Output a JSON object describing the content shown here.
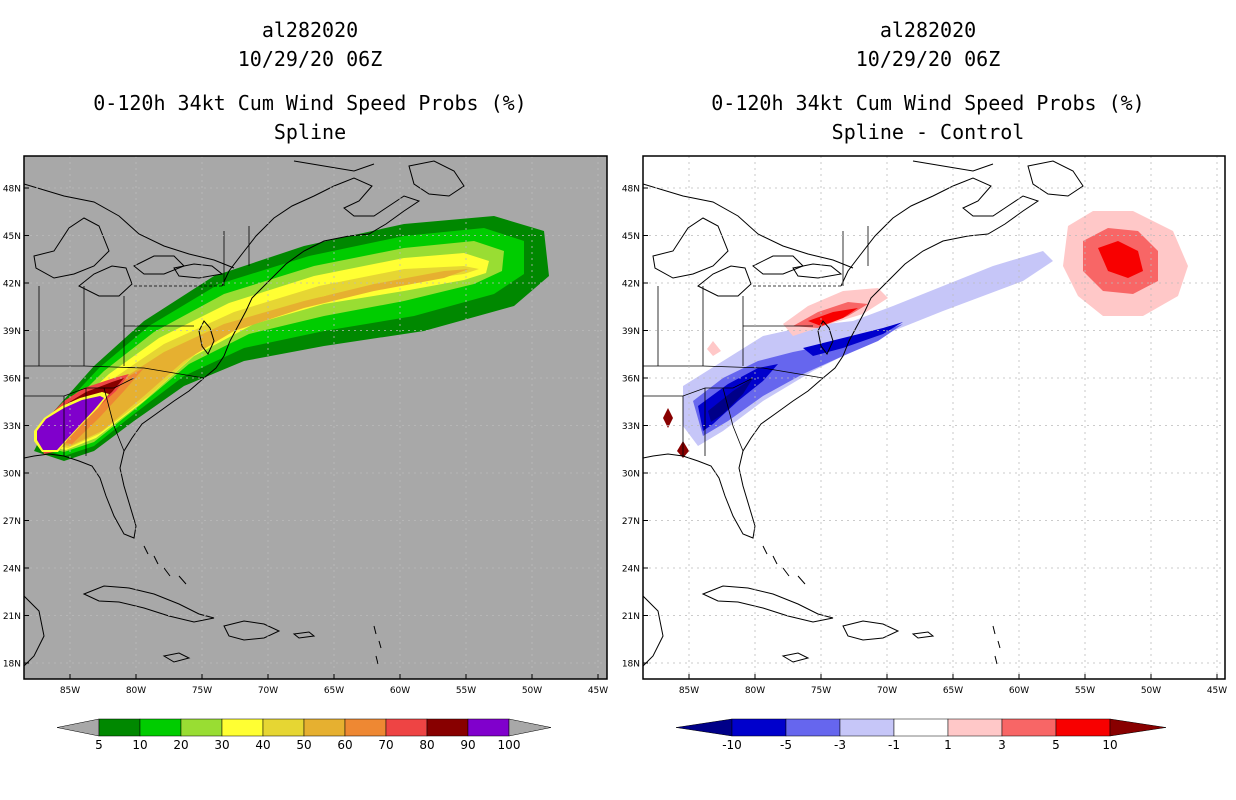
{
  "left_panel": {
    "storm_id": "al282020",
    "datetime": "10/29/20 06Z",
    "product": "0-120h 34kt Cum Wind Speed Probs (%)",
    "subtitle": "Spline",
    "colorbar": {
      "labels": [
        "5",
        "10",
        "20",
        "30",
        "40",
        "50",
        "60",
        "70",
        "80",
        "90",
        "100"
      ],
      "colors": [
        "#008800",
        "#00cc00",
        "#99dd33",
        "#ffff33",
        "#e6d633",
        "#e6b030",
        "#ee8833",
        "#ee4444",
        "#880000",
        "#8000cc"
      ],
      "end_color": "#a8a8a8"
    },
    "background_color": "#a8a8a8"
  },
  "right_panel": {
    "storm_id": "al282020",
    "datetime": "10/29/20 06Z",
    "product": "0-120h 34kt Cum Wind Speed Probs (%)",
    "subtitle": "Spline - Control",
    "colorbar": {
      "labels": [
        "-10",
        "-5",
        "-3",
        "-1",
        "1",
        "3",
        "5",
        "10"
      ],
      "colors": [
        "#0000cc",
        "#6666ee",
        "#c6c6f8",
        "#ffffff",
        "#ffc8c8",
        "#f86666",
        "#f80000"
      ],
      "low_end_color": "#000088",
      "high_end_color": "#880000"
    }
  },
  "axes": {
    "lat_labels": [
      "48N",
      "45N",
      "42N",
      "39N",
      "36N",
      "33N",
      "30N",
      "27N",
      "24N",
      "21N",
      "18N"
    ],
    "lon_labels": [
      "85W",
      "80W",
      "75W",
      "70W",
      "65W",
      "60W",
      "55W",
      "50W",
      "45W"
    ]
  }
}
